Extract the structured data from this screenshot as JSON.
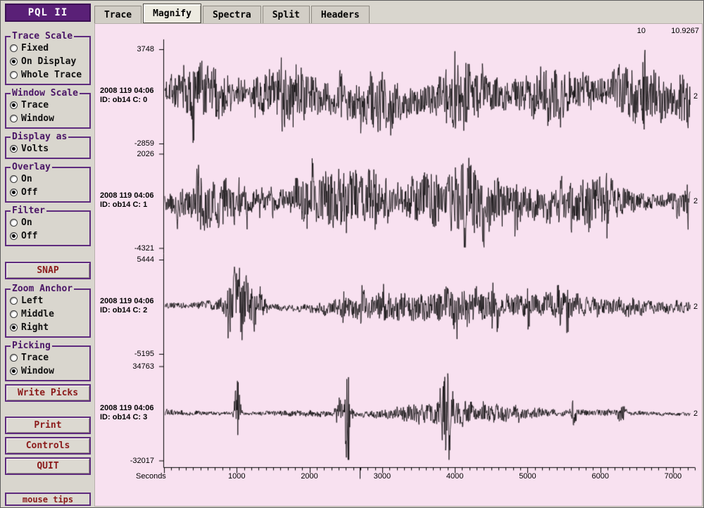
{
  "app": {
    "title": "PQL II",
    "mouse_tips": "mouse tips"
  },
  "tabs": [
    {
      "label": "Trace",
      "active": false
    },
    {
      "label": "Magnify",
      "active": true
    },
    {
      "label": "Spectra",
      "active": false
    },
    {
      "label": "Split",
      "active": false
    },
    {
      "label": "Headers",
      "active": false
    }
  ],
  "sidebar": {
    "groups": [
      {
        "title": "Trace Scale",
        "options": [
          {
            "label": "Fixed",
            "selected": false
          },
          {
            "label": "On Display",
            "selected": true
          },
          {
            "label": "Whole Trace",
            "selected": false
          }
        ]
      },
      {
        "title": "Window Scale",
        "options": [
          {
            "label": "Trace",
            "selected": true
          },
          {
            "label": "Window",
            "selected": false
          }
        ]
      },
      {
        "title": "Display as",
        "options": [
          {
            "label": "Volts",
            "selected": true
          }
        ]
      },
      {
        "title": "Overlay",
        "options": [
          {
            "label": "On",
            "selected": false
          },
          {
            "label": "Off",
            "selected": true
          }
        ]
      },
      {
        "title": "Filter",
        "options": [
          {
            "label": "On",
            "selected": false
          },
          {
            "label": "Off",
            "selected": true
          }
        ]
      },
      {
        "title": "Zoom Anchor",
        "options": [
          {
            "label": "Left",
            "selected": false
          },
          {
            "label": "Middle",
            "selected": false
          },
          {
            "label": "Right",
            "selected": true
          }
        ]
      },
      {
        "title": "Picking",
        "options": [
          {
            "label": "Trace",
            "selected": false
          },
          {
            "label": "Window",
            "selected": true
          }
        ]
      }
    ],
    "buttons": [
      {
        "label": "SNAP"
      },
      {
        "label": "Write Picks"
      },
      {
        "label": "Print"
      },
      {
        "label": "Controls"
      },
      {
        "label": "QUIT"
      }
    ]
  },
  "plot": {
    "header_values": [
      "10",
      "10.9267"
    ],
    "x_label": "Seconds",
    "x_ticks": [
      1000,
      2000,
      3000,
      4000,
      5000,
      6000,
      7000
    ],
    "x_max": 7300,
    "marker_s": 2692,
    "traces": [
      {
        "date": "2008 119 04:06",
        "id": "ID: ob14 C: 0",
        "ymax": "3748",
        "ymin": "-2859",
        "right": "2",
        "render": {
          "seed": 7,
          "amp": 48,
          "envMin": 0.5,
          "envFreq": 0.05,
          "meander": 8,
          "spikeDensity": 0.004,
          "spikeMult": 1.6,
          "bursts": [
            [
              267,
              2,
              1.4
            ],
            [
              838,
              5,
              1.1
            ]
          ]
        }
      },
      {
        "date": "2008 119 04:06",
        "id": "ID: ob14 C: 1",
        "ymax": "2026",
        "ymin": "-4321",
        "right": "2",
        "render": {
          "seed": 19,
          "amp": 36,
          "envMin": 0.3,
          "envFreq": 0.035,
          "meander": 4,
          "spikeDensity": 0.018,
          "spikeMult": 1.8,
          "bursts": [
            [
              480,
              120,
              0.7
            ]
          ]
        }
      },
      {
        "date": "2008 119 04:06",
        "id": "ID: ob14 C: 2",
        "ymax": "5444",
        "ymin": "-5195",
        "right": "2",
        "render": {
          "seed": 37,
          "amp": 9,
          "envMin": 0.5,
          "envFreq": 0.04,
          "meander": 2,
          "spikeDensity": 0.008,
          "spikeMult": 2.2,
          "bursts": [
            [
              205,
              10,
              6.0
            ],
            [
              232,
              6,
              3.5
            ],
            [
              430,
              55,
              1.8
            ],
            [
              520,
              35,
              1.6
            ],
            [
              610,
              45,
              1.3
            ],
            [
              700,
              25,
              1.0
            ],
            [
              760,
              20,
              1.0
            ]
          ]
        }
      },
      {
        "date": "2008 119 04:06",
        "id": "ID: ob14 C: 3",
        "ymax": "34763",
        "ymin": "-32017",
        "right": "2",
        "render": {
          "seed": 53,
          "amp": 5,
          "envMin": 0.5,
          "envFreq": 0.03,
          "meander": 1,
          "spikeDensity": 0.003,
          "spikeMult": 2.0,
          "bursts": [
            [
              202,
              2.5,
              13
            ],
            [
              352,
              4,
              10
            ],
            [
              360,
              3,
              7
            ],
            [
              497,
              4,
              13
            ],
            [
              504,
              3,
              8
            ],
            [
              470,
              45,
              2.2
            ],
            [
              545,
              35,
              1.8
            ],
            [
              608,
              28,
              1.5
            ],
            [
              680,
              3,
              4
            ],
            [
              748,
              3,
              3.5
            ]
          ]
        }
      }
    ]
  }
}
